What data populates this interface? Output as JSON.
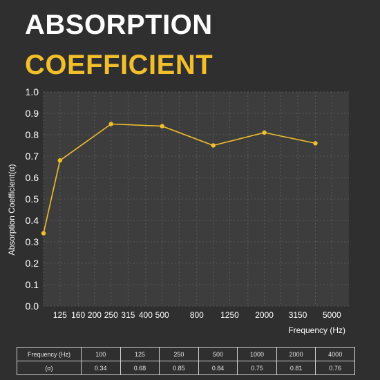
{
  "title": {
    "line1": "ABSORPTION",
    "line2": "COEFFICIENT"
  },
  "colors": {
    "accent": "#f2bf2b",
    "background": "#2f2f30",
    "plot_bg": "#3d3d3d",
    "text": "#ffffff"
  },
  "chart_data": {
    "type": "line",
    "xlabel": "Frequency (Hz)",
    "ylabel": "Absorption Coefficient(α)",
    "ylim": [
      0,
      1.0
    ],
    "yticks": [
      "0.0",
      "0.1",
      "0.2",
      "0.3",
      "0.4",
      "0.5",
      "0.6",
      "0.7",
      "0.8",
      "0.9",
      "1.0"
    ],
    "xticks": [
      "125",
      "160",
      "200",
      "250",
      "315",
      "400",
      "500",
      "800",
      "1250",
      "2000",
      "3150",
      "5000"
    ],
    "grid": true,
    "series": [
      {
        "x": [
          100,
          125,
          250,
          500,
          1000,
          2000,
          4000
        ],
        "values": [
          0.34,
          0.68,
          0.85,
          0.84,
          0.75,
          0.81,
          0.76
        ]
      }
    ]
  },
  "table": {
    "row_headers": [
      "Frequency (Hz)",
      "(α)"
    ],
    "frequencies": [
      "100",
      "125",
      "250",
      "500",
      "1000",
      "2000",
      "4000"
    ],
    "coefficients": [
      "0.34",
      "0.68",
      "0.85",
      "0.84",
      "0.75",
      "0.81",
      "0.76"
    ]
  }
}
